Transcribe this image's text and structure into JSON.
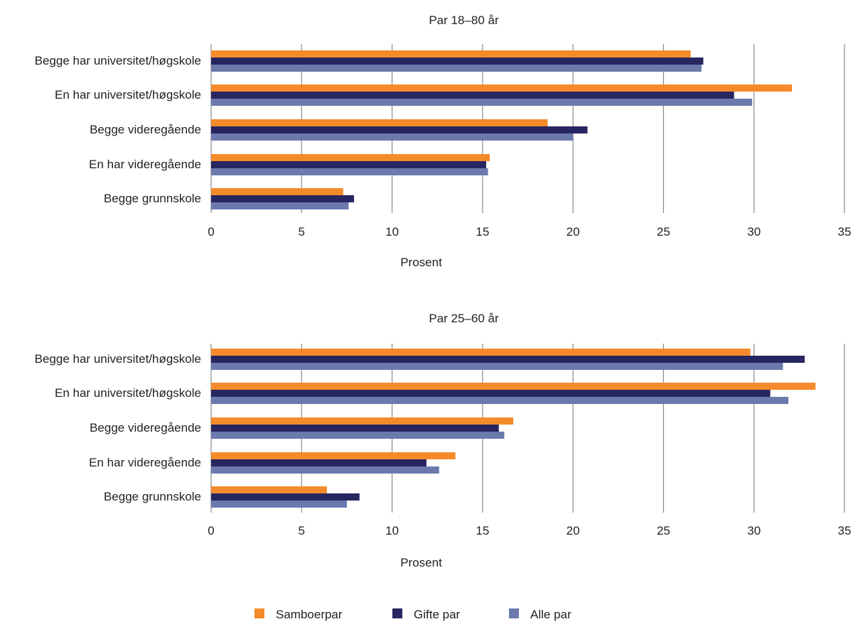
{
  "chart_data": [
    {
      "type": "bar",
      "orientation": "horizontal",
      "title": "Par 18–80 år",
      "xlabel": "Prosent",
      "xlim": [
        0,
        35
      ],
      "xticks": [
        0,
        5,
        10,
        15,
        20,
        25,
        30,
        35
      ],
      "grid": true,
      "categories": [
        "Begge har universitet/høgskole",
        "En har universitet/høgskole",
        "Begge videregående",
        "En har videregående",
        "Begge grunnskole"
      ],
      "series": [
        {
          "name": "Samboerpar",
          "values": [
            26.5,
            32.1,
            18.6,
            15.4,
            7.3
          ]
        },
        {
          "name": "Gifte par",
          "values": [
            27.2,
            28.9,
            20.8,
            15.2,
            7.9
          ]
        },
        {
          "name": "Alle par",
          "values": [
            27.1,
            29.9,
            20.0,
            15.3,
            7.6
          ]
        }
      ]
    },
    {
      "type": "bar",
      "orientation": "horizontal",
      "title": "Par 25–60 år",
      "xlabel": "Prosent",
      "xlim": [
        0,
        35
      ],
      "xticks": [
        0,
        5,
        10,
        15,
        20,
        25,
        30,
        35
      ],
      "grid": true,
      "categories": [
        "Begge har universitet/høgskole",
        "En har universitet/høgskole",
        "Begge videregående",
        "En har videregående",
        "Begge grunnskole"
      ],
      "series": [
        {
          "name": "Samboerpar",
          "values": [
            29.8,
            33.4,
            16.7,
            13.5,
            6.4
          ]
        },
        {
          "name": "Gifte par",
          "values": [
            32.8,
            30.9,
            15.9,
            11.9,
            8.2
          ]
        },
        {
          "name": "Alle par",
          "values": [
            31.6,
            31.9,
            16.2,
            12.6,
            7.5
          ]
        }
      ]
    }
  ],
  "legend": {
    "placement": "bottom",
    "items": [
      {
        "label": "Samboerpar",
        "color": "#f58a2b"
      },
      {
        "label": "Gifte par",
        "color": "#272660"
      },
      {
        "label": "Alle par",
        "color": "#6b79ad"
      }
    ]
  },
  "colors": {
    "series": [
      "#f58a2b",
      "#272660",
      "#6b79ad"
    ],
    "grid": "#8a8a8a"
  }
}
